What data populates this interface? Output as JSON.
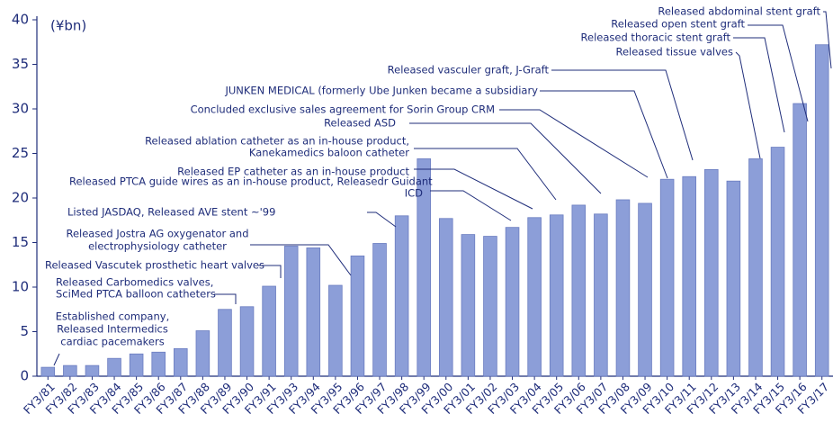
{
  "chart_data": {
    "type": "bar",
    "unit_label": "(¥bn)",
    "categories": [
      "FY3/81",
      "FY3/82",
      "FY3/83",
      "FY3/84",
      "FY3/85",
      "FY3/86",
      "FY3/87",
      "FY3/88",
      "FY3/89",
      "FY3/90",
      "FY3/91",
      "FY3/93",
      "FY3/94",
      "FY3/95",
      "FY3/96",
      "FY3/97",
      "FY3/98",
      "FY3/99",
      "FY3/00",
      "FY3/01",
      "FY3/02",
      "FY3/03",
      "FY3/04",
      "FY3/05",
      "FY3/06",
      "FY3/07",
      "FY3/08",
      "FY3/09",
      "FY3/10",
      "FY3/11",
      "FY3/12",
      "FY3/13",
      "FY3/14",
      "FY3/15",
      "FY3/16",
      "FY3/17"
    ],
    "values": [
      1.0,
      1.2,
      1.2,
      2.0,
      2.5,
      2.7,
      3.1,
      5.1,
      7.5,
      7.8,
      10.1,
      14.6,
      14.4,
      10.2,
      13.5,
      14.9,
      18.0,
      24.4,
      17.7,
      15.9,
      15.7,
      16.7,
      17.8,
      18.1,
      19.2,
      18.2,
      19.8,
      19.4,
      22.1,
      22.4,
      23.2,
      21.9,
      24.4,
      25.7,
      30.6,
      37.2
    ],
    "color": "#8c9ed8",
    "ylim": [
      0,
      40
    ],
    "yticks": [
      0,
      5,
      10,
      15,
      20,
      25,
      30,
      35,
      40
    ],
    "annotations": [
      {
        "lines": [
          "Established company,",
          "Released Intermedics",
          "cardiac pacemakers"
        ]
      },
      {
        "lines": [
          "Released Carbomedics valves,",
          "SciMed PTCA balloon catheters"
        ]
      },
      {
        "lines": [
          "Released Vascutek prosthetic heart valves"
        ]
      },
      {
        "lines": [
          "Released Jostra AG oxygenator and",
          "electrophysiology catheter"
        ]
      },
      {
        "lines": [
          "Listed JASDAQ,  Released AVE stent ~'99"
        ]
      },
      {
        "lines": [
          "Released PTCA guide wires as an in-house product, Releasedr Guidant",
          "ICD"
        ]
      },
      {
        "lines": [
          "Released EP catheter as an in-house product"
        ]
      },
      {
        "lines": [
          "Released ablation catheter as an in-house product,",
          "Kanekamedics baloon catheter"
        ]
      },
      {
        "lines": [
          "Released ASD"
        ]
      },
      {
        "lines": [
          "Concluded exclusive sales agreement for Sorin Group CRM"
        ]
      },
      {
        "lines": [
          "JUNKEN MEDICAL (formerly Ube Junken became a subsidiary"
        ]
      },
      {
        "lines": [
          "Released vasculer graft,  J-Graft"
        ]
      },
      {
        "lines": [
          "Released tissue valves"
        ]
      },
      {
        "lines": [
          "Released thoracic stent graft"
        ]
      },
      {
        "lines": [
          "Released open stent graft"
        ]
      },
      {
        "lines": [
          "Released abdominal stent graft"
        ]
      }
    ]
  }
}
